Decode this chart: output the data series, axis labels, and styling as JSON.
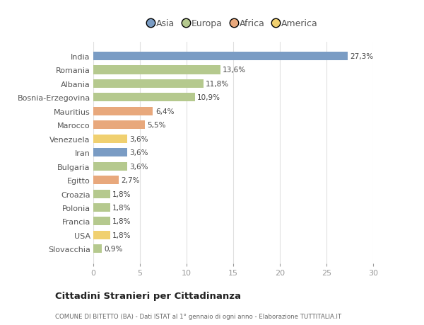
{
  "countries": [
    "India",
    "Romania",
    "Albania",
    "Bosnia-Erzegovina",
    "Mauritius",
    "Marocco",
    "Venezuela",
    "Iran",
    "Bulgaria",
    "Egitto",
    "Croazia",
    "Polonia",
    "Francia",
    "USA",
    "Slovacchia"
  ],
  "values": [
    27.3,
    13.6,
    11.8,
    10.9,
    6.4,
    5.5,
    3.6,
    3.6,
    3.6,
    2.7,
    1.8,
    1.8,
    1.8,
    1.8,
    0.9
  ],
  "labels": [
    "27,3%",
    "13,6%",
    "11,8%",
    "10,9%",
    "6,4%",
    "5,5%",
    "3,6%",
    "3,6%",
    "3,6%",
    "2,7%",
    "1,8%",
    "1,8%",
    "1,8%",
    "1,8%",
    "0,9%"
  ],
  "colors": [
    "#7a9cc4",
    "#b5c98e",
    "#b5c98e",
    "#b5c98e",
    "#e8a87c",
    "#e8a87c",
    "#f0d070",
    "#7a9cc4",
    "#b5c98e",
    "#e8a87c",
    "#b5c98e",
    "#b5c98e",
    "#b5c98e",
    "#f0d070",
    "#b5c98e"
  ],
  "legend_labels": [
    "Asia",
    "Europa",
    "Africa",
    "America"
  ],
  "legend_colors": [
    "#7a9cc4",
    "#b5c98e",
    "#e8a87c",
    "#f0d070"
  ],
  "title": "Cittadini Stranieri per Cittadinanza",
  "subtitle": "COMUNE DI BITETTO (BA) - Dati ISTAT al 1° gennaio di ogni anno - Elaborazione TUTTITALIA.IT",
  "xlim": [
    0,
    30
  ],
  "xticks": [
    0,
    5,
    10,
    15,
    20,
    25,
    30
  ],
  "bg_color": "#ffffff",
  "grid_color": "#e0e0e0"
}
